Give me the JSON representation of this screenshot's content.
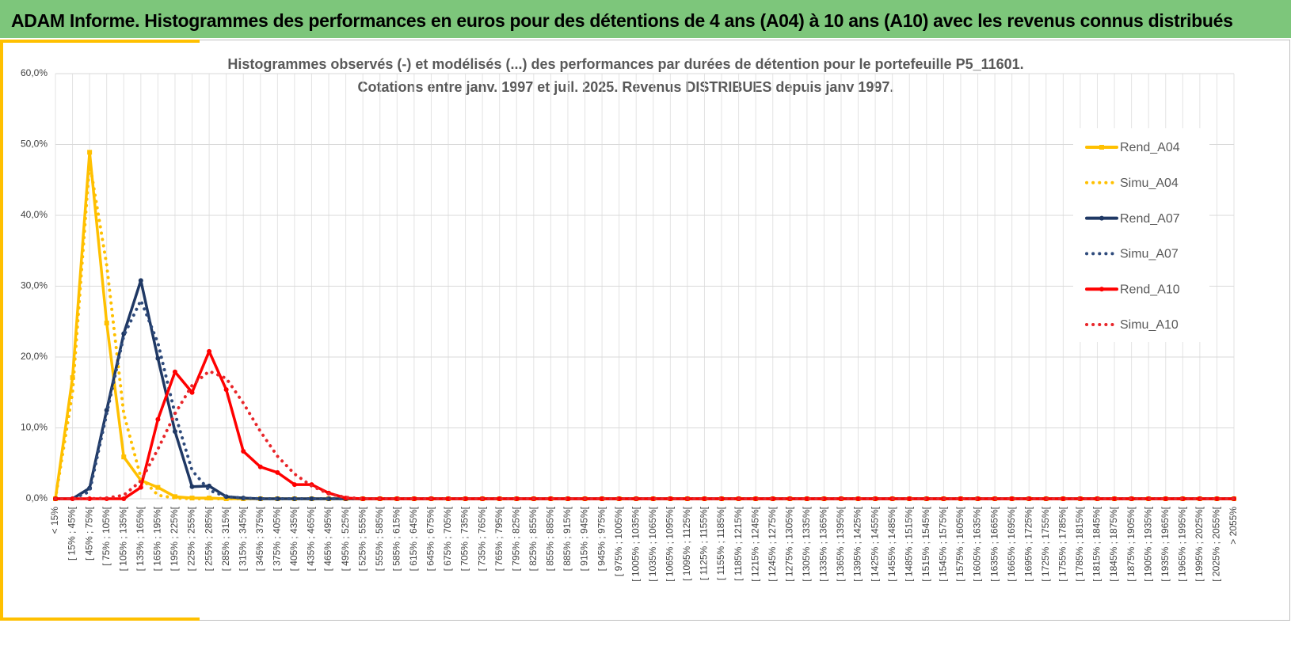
{
  "header": {
    "title": "ADAM Informe. Histogrammes des performances en euros pour des détentions de 4 ans (A04) à 10 ans (A10) avec les revenus connus distribués"
  },
  "chart_data": {
    "type": "line",
    "title": "Histogrammes observés (-) et modélisés (...) des performances par durées de détention pour le portefeuille P5_11601.",
    "subtitle": "Cotations entre janv. 1997 et juil. 2025. Revenus DISTRIBUES depuis janv 1997.",
    "categories": [
      "< 15%",
      "[ 15% ; 45%[",
      "[ 45% ; 75%[",
      "[ 75% ; 105%[",
      "[ 105% ; 135%[",
      "[ 135% ; 165%[",
      "[ 165% ; 195%[",
      "[ 195% ; 225%[",
      "[ 225% ; 255%[",
      "[ 255% ; 285%[",
      "[ 285% ; 315%[",
      "[ 315% ; 345%[",
      "[ 345% ; 375%[",
      "[ 375% ; 405%[",
      "[ 405% ; 435%[",
      "[ 435% ; 465%[",
      "[ 465% ; 495%[",
      "[ 495% ; 525%[",
      "[ 525% ; 555%[",
      "[ 555% ; 585%[",
      "[ 585% ; 615%[",
      "[ 615% ; 645%[",
      "[ 645% ; 675%[",
      "[ 675% ; 705%[",
      "[ 705% ; 735%[",
      "[ 735% ; 765%[",
      "[ 765% ; 795%[",
      "[ 795% ; 825%[",
      "[ 825% ; 855%[",
      "[ 855% ; 885%[",
      "[ 885% ; 915%[",
      "[ 915% ; 945%[",
      "[ 945% ; 975%[",
      "[ 975% ; 1005%[",
      "[ 1005% ; 1035%[",
      "[ 1035% ; 1065%[",
      "[ 1065% ; 1095%[",
      "[ 1095% ; 1125%[",
      "[ 1125% ; 1155%[",
      "[ 1155% ; 1185%[",
      "[ 1185% ; 1215%[",
      "[ 1215% ; 1245%[",
      "[ 1245% ; 1275%[",
      "[ 1275% ; 1305%[",
      "[ 1305% ; 1335%[",
      "[ 1335% ; 1365%[",
      "[ 1365% ; 1395%[",
      "[ 1395% ; 1425%[",
      "[ 1425% ; 1455%[",
      "[ 1455% ; 1485%[",
      "[ 1485% ; 1515%[",
      "[ 1515% ; 1545%[",
      "[ 1545% ; 1575%[",
      "[ 1575% ; 1605%[",
      "[ 1605% ; 1635%[",
      "[ 1635% ; 1665%[",
      "[ 1665% ; 1695%[",
      "[ 1695% ; 1725%[",
      "[ 1725% ; 1755%[",
      "[ 1755% ; 1785%[",
      "[ 1785% ; 1815%[",
      "[ 1815% ; 1845%[",
      "[ 1845% ; 1875%[",
      "[ 1875% ; 1905%[",
      "[ 1905% ; 1935%[",
      "[ 1935% ; 1965%[",
      "[ 1965% ; 1995%[",
      "[ 1995% ; 2025%[",
      "[ 2025% ; 2055%[",
      "> 2055%"
    ],
    "series": [
      {
        "name": "Rend_A04",
        "color": "#ffc000",
        "style": "solid",
        "marker": "square",
        "values": [
          0,
          17.1,
          48.9,
          24.8,
          5.9,
          2.6,
          1.6,
          0.3,
          0.1,
          0.1,
          0,
          0,
          0,
          0,
          0,
          0,
          0,
          0,
          0,
          0,
          0,
          0,
          0,
          0,
          0,
          0,
          0,
          0,
          0,
          0,
          0,
          0,
          0,
          0,
          0,
          0,
          0,
          0,
          0,
          0,
          0,
          0,
          0,
          0,
          0,
          0,
          0,
          0,
          0,
          0,
          0,
          0,
          0,
          0,
          0,
          0,
          0,
          0,
          0,
          0,
          0,
          0,
          0,
          0,
          0,
          0,
          0,
          0,
          0,
          0
        ]
      },
      {
        "name": "Simu_A04",
        "color": "#ffc000",
        "style": "dotted",
        "marker": null,
        "values": [
          0,
          15,
          47.5,
          33,
          12,
          3,
          0.5,
          0.1,
          0,
          0,
          0,
          0,
          0,
          0,
          0,
          0,
          0,
          0,
          0,
          0,
          0,
          0,
          0,
          0,
          0,
          0,
          0,
          0,
          0,
          0,
          0,
          0,
          0,
          0,
          0,
          0,
          0,
          0,
          0,
          0,
          0,
          0,
          0,
          0,
          0,
          0,
          0,
          0,
          0,
          0,
          0,
          0,
          0,
          0,
          0,
          0,
          0,
          0,
          0,
          0,
          0,
          0,
          0,
          0,
          0,
          0,
          0,
          0,
          0,
          0
        ]
      },
      {
        "name": "Rend_A07",
        "color": "#1f3864",
        "style": "solid",
        "marker": "circle",
        "values": [
          0,
          0,
          1.5,
          12.5,
          23.3,
          30.8,
          19.8,
          9.5,
          1.7,
          1.8,
          0.3,
          0.1,
          0,
          0,
          0,
          0,
          0,
          0,
          0,
          0,
          0,
          0,
          0,
          0,
          0,
          0,
          0,
          0,
          0,
          0,
          0,
          0,
          0,
          0,
          0,
          0,
          0,
          0,
          0,
          0,
          0,
          0,
          0,
          0,
          0,
          0,
          0,
          0,
          0,
          0,
          0,
          0,
          0,
          0,
          0,
          0,
          0,
          0,
          0,
          0,
          0,
          0,
          0,
          0,
          0,
          0,
          0,
          0,
          0,
          0
        ]
      },
      {
        "name": "Simu_A07",
        "color": "#2f4b7c",
        "style": "dotted",
        "marker": null,
        "values": [
          0,
          0,
          1,
          12,
          23,
          28,
          22,
          12,
          4,
          1.2,
          0.3,
          0.1,
          0,
          0,
          0,
          0,
          0,
          0,
          0,
          0,
          0,
          0,
          0,
          0,
          0,
          0,
          0,
          0,
          0,
          0,
          0,
          0,
          0,
          0,
          0,
          0,
          0,
          0,
          0,
          0,
          0,
          0,
          0,
          0,
          0,
          0,
          0,
          0,
          0,
          0,
          0,
          0,
          0,
          0,
          0,
          0,
          0,
          0,
          0,
          0,
          0,
          0,
          0,
          0,
          0,
          0,
          0,
          0,
          0,
          0
        ]
      },
      {
        "name": "Rend_A10",
        "color": "#ff0000",
        "style": "solid",
        "marker": "circle",
        "values": [
          0,
          0,
          0,
          0,
          0,
          1.6,
          11.2,
          17.9,
          15,
          20.8,
          15.4,
          6.7,
          4.5,
          3.7,
          2,
          2,
          0.8,
          0.1,
          0,
          0,
          0,
          0,
          0,
          0,
          0,
          0,
          0,
          0,
          0,
          0,
          0,
          0,
          0,
          0,
          0,
          0,
          0,
          0,
          0,
          0,
          0,
          0,
          0,
          0,
          0,
          0,
          0,
          0,
          0,
          0,
          0,
          0,
          0,
          0,
          0,
          0,
          0,
          0,
          0,
          0,
          0,
          0,
          0,
          0,
          0,
          0,
          0,
          0,
          0,
          0
        ]
      },
      {
        "name": "Simu_A10",
        "color": "#e8262a",
        "style": "dotted",
        "marker": null,
        "values": [
          0,
          0,
          0,
          0.1,
          0.5,
          2.5,
          7,
          12,
          16,
          18,
          17,
          13.5,
          9.5,
          6,
          3.5,
          1.8,
          0.7,
          0.2,
          0,
          0,
          0,
          0,
          0,
          0,
          0,
          0,
          0,
          0,
          0,
          0,
          0,
          0,
          0,
          0,
          0,
          0,
          0,
          0,
          0,
          0,
          0,
          0,
          0,
          0,
          0,
          0,
          0,
          0,
          0,
          0,
          0,
          0,
          0,
          0,
          0,
          0,
          0,
          0,
          0,
          0,
          0,
          0,
          0,
          0,
          0,
          0,
          0,
          0,
          0,
          0
        ]
      }
    ],
    "ylim": [
      0,
      60
    ],
    "yticks": [
      {
        "value": 0,
        "label": "0,0%"
      },
      {
        "value": 10,
        "label": "10,0%"
      },
      {
        "value": 20,
        "label": "20,0%"
      },
      {
        "value": 30,
        "label": "30,0%"
      },
      {
        "value": 40,
        "label": "40,0%"
      },
      {
        "value": 50,
        "label": "50,0%"
      },
      {
        "value": 60,
        "label": "60,0%"
      }
    ],
    "grid": true,
    "legend": "right"
  }
}
